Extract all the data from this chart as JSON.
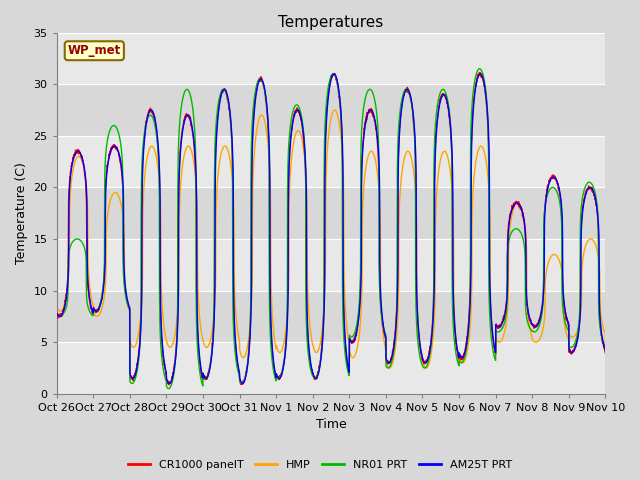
{
  "title": "Temperatures",
  "ylabel": "Temperature (C)",
  "xlabel": "Time",
  "xlim": [
    0,
    15
  ],
  "ylim": [
    0,
    35
  ],
  "yticks": [
    0,
    5,
    10,
    15,
    20,
    25,
    30,
    35
  ],
  "xtick_labels": [
    "Oct 26",
    "Oct 27",
    "Oct 28",
    "Oct 29",
    "Oct 30",
    "Oct 31",
    "Nov 1",
    "Nov 2",
    "Nov 3",
    "Nov 4",
    "Nov 5",
    "Nov 6",
    "Nov 7",
    "Nov 8",
    "Nov 9",
    "Nov 10"
  ],
  "xtick_positions": [
    0,
    1,
    2,
    3,
    4,
    5,
    6,
    7,
    8,
    9,
    10,
    11,
    12,
    13,
    14,
    15
  ],
  "fig_bg_color": "#d8d8d8",
  "plot_bg_color": "#e8e8e8",
  "legend_entries": [
    "CR1000 panelT",
    "HMP",
    "NR01 PRT",
    "AM25T PRT"
  ],
  "legend_colors": [
    "#ff0000",
    "#ffa500",
    "#00bb00",
    "#0000ff"
  ],
  "wp_met_label": "WP_met",
  "wp_met_bg": "#ffffcc",
  "wp_met_border": "#886600",
  "title_fontsize": 11,
  "label_fontsize": 9,
  "tick_fontsize": 8,
  "band_colors": [
    "#e8e8e8",
    "#d8d8d8"
  ],
  "band_edges": [
    0,
    5,
    10,
    15,
    20,
    25,
    30,
    35
  ]
}
